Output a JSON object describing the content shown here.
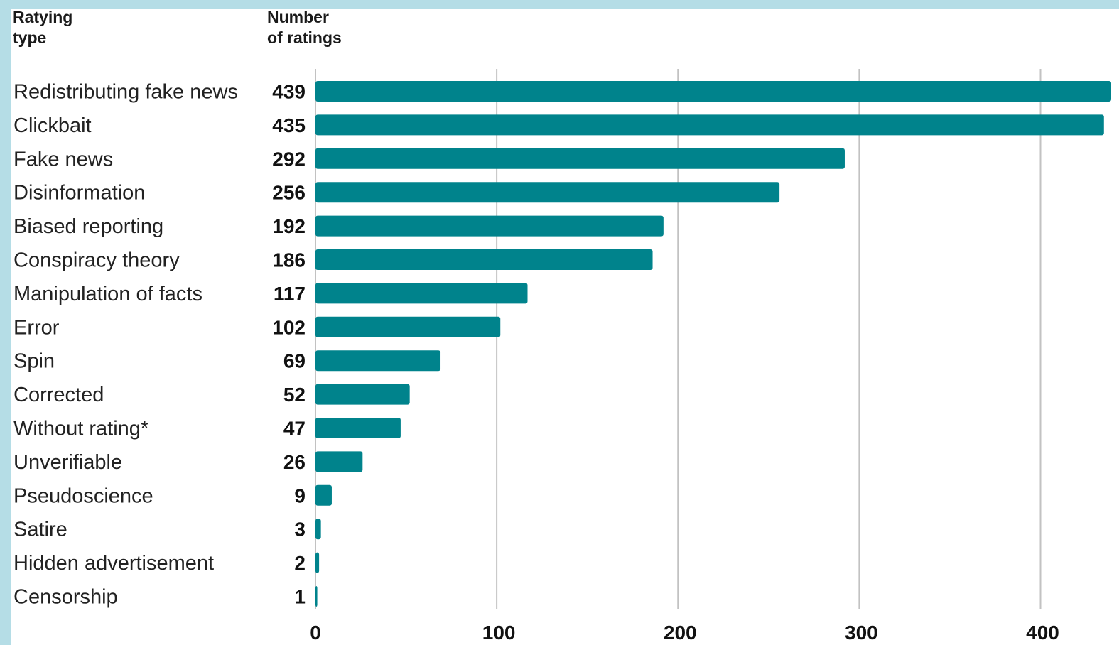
{
  "header": {
    "category_col": [
      "Ratying",
      "type"
    ],
    "value_col": [
      "Number",
      "of ratings"
    ]
  },
  "colors": {
    "bar": "#00838c",
    "grid": "#c2c2c2",
    "frame": "#b5dde6"
  },
  "chart_data": {
    "type": "bar",
    "orientation": "horizontal",
    "title": "",
    "xlabel": "Number of ratings",
    "ylabel": "Ratying type",
    "categories": [
      "Redistributing fake news",
      "Clickbait",
      "Fake news",
      "Disinformation",
      "Biased reporting",
      "Conspiracy theory",
      "Manipulation of facts",
      "Error",
      "Spin",
      "Corrected",
      "Without rating*",
      "Unverifiable",
      "Pseudoscience",
      "Satire",
      "Hidden advertisement",
      "Censorship"
    ],
    "values": [
      439,
      435,
      292,
      256,
      192,
      186,
      117,
      102,
      69,
      52,
      47,
      26,
      9,
      3,
      2,
      1
    ],
    "xlim": [
      0,
      439
    ],
    "xticks": [
      0,
      100,
      200,
      300,
      400
    ],
    "grid": true,
    "legend": "none"
  }
}
